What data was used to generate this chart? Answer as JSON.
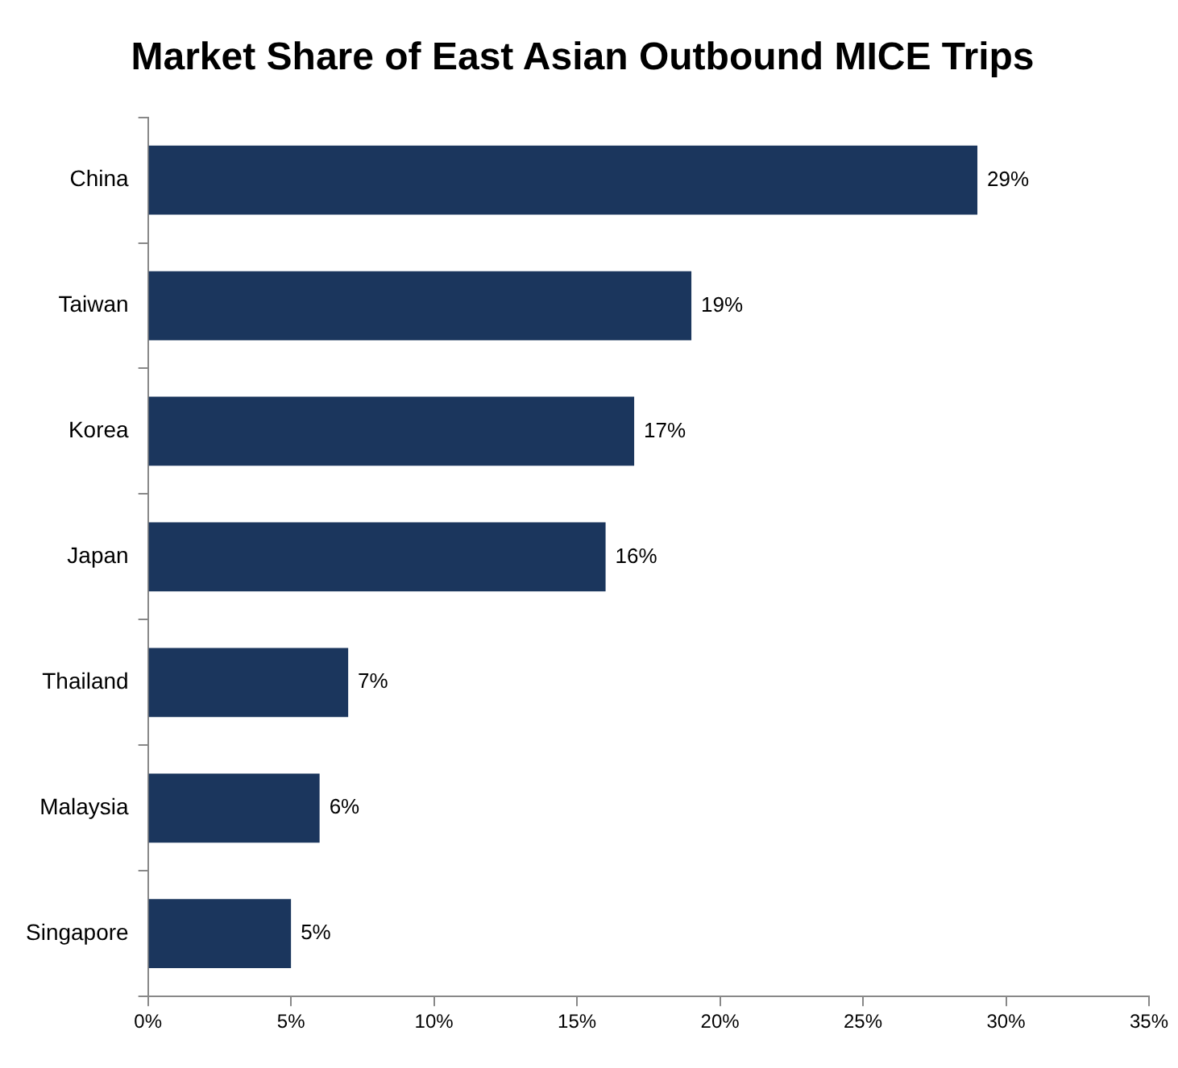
{
  "chart_data": {
    "type": "bar",
    "orientation": "horizontal",
    "title": "Market Share of East Asian Outbound MICE Trips",
    "categories": [
      "China",
      "Taiwan",
      "Korea",
      "Japan",
      "Thailand",
      "Malaysia",
      "Singapore"
    ],
    "values": [
      29,
      19,
      17,
      16,
      7,
      6,
      5
    ],
    "value_labels": [
      "29%",
      "19%",
      "17%",
      "16%",
      "7%",
      "6%",
      "5%"
    ],
    "color": "#1b365d",
    "xlim": [
      0,
      35
    ],
    "xticks": [
      {
        "value": 0,
        "label": "0%"
      },
      {
        "value": 5,
        "label": "5%"
      },
      {
        "value": 10,
        "label": "10%"
      },
      {
        "value": 15,
        "label": "15%"
      },
      {
        "value": 20,
        "label": "20%"
      },
      {
        "value": 25,
        "label": "25%"
      },
      {
        "value": 30,
        "label": "30%"
      },
      {
        "value": 35,
        "label": "35%"
      }
    ],
    "grid": false,
    "legend": false
  }
}
